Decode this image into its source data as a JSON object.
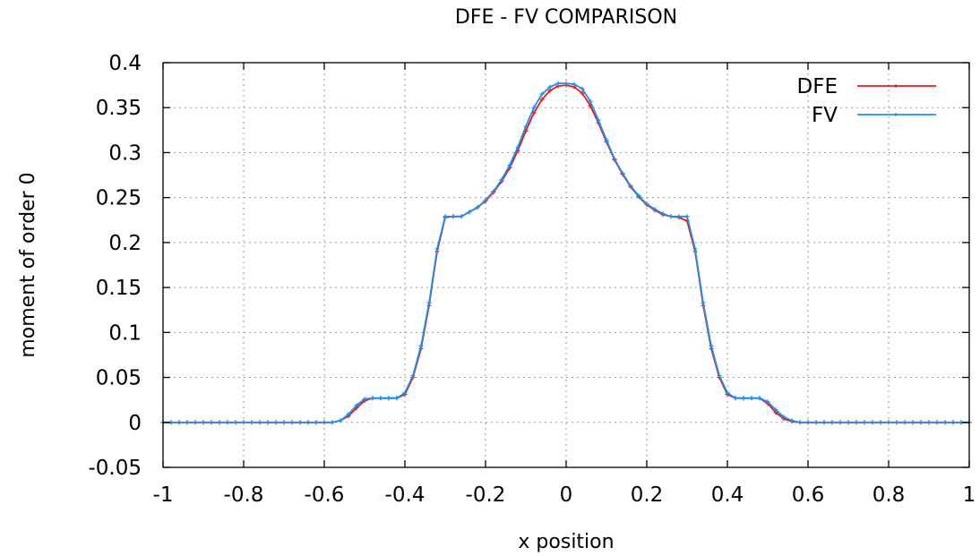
{
  "chart_data": {
    "type": "line",
    "title": "DFE - FV COMPARISON",
    "xlabel": "x position",
    "ylabel": "moment of order 0",
    "xlim": [
      -1,
      1
    ],
    "ylim": [
      -0.05,
      0.4
    ],
    "xticks": [
      -1,
      -0.8,
      -0.6,
      -0.4,
      -0.2,
      0,
      0.2,
      0.4,
      0.6,
      0.8,
      1
    ],
    "xtick_labels": [
      "-1",
      "-0.8",
      "-0.6",
      "-0.4",
      "-0.2",
      "0",
      "0.2",
      "0.4",
      "0.6",
      "0.8",
      "1"
    ],
    "yticks": [
      -0.05,
      0,
      0.05,
      0.1,
      0.15,
      0.2,
      0.25,
      0.3,
      0.35,
      0.4
    ],
    "ytick_labels": [
      "-0.05",
      "0",
      "0.05",
      "0.1",
      "0.15",
      "0.2",
      "0.25",
      "0.3",
      "0.35",
      "0.4"
    ],
    "grid": true,
    "legend_position": "top-right",
    "series": [
      {
        "name": "DFE",
        "color": "#e41a1c",
        "x": [
          -1,
          -0.58,
          -0.56,
          -0.54,
          -0.52,
          -0.5,
          -0.48,
          -0.46,
          -0.44,
          -0.42,
          -0.4,
          -0.38,
          -0.36,
          -0.34,
          -0.32,
          -0.3,
          -0.28,
          -0.26,
          -0.24,
          -0.22,
          -0.2,
          -0.18,
          -0.16,
          -0.14,
          -0.12,
          -0.1,
          -0.08,
          -0.06,
          -0.04,
          -0.02,
          0,
          0.02,
          0.04,
          0.06,
          0.08,
          0.1,
          0.12,
          0.14,
          0.16,
          0.18,
          0.2,
          0.22,
          0.24,
          0.26,
          0.28,
          0.3,
          0.32,
          0.34,
          0.36,
          0.38,
          0.4,
          0.42,
          0.44,
          0.46,
          0.48,
          0.5,
          0.52,
          0.54,
          0.56,
          0.58,
          1
        ],
        "y": [
          0,
          0,
          0.002,
          0.007,
          0.016,
          0.024,
          0.027,
          0.027,
          0.027,
          0.027,
          0.031,
          0.05,
          0.082,
          0.13,
          0.19,
          0.228,
          0.229,
          0.229,
          0.234,
          0.239,
          0.246,
          0.256,
          0.268,
          0.283,
          0.302,
          0.324,
          0.344,
          0.359,
          0.369,
          0.374,
          0.375,
          0.373,
          0.366,
          0.352,
          0.333,
          0.312,
          0.292,
          0.276,
          0.262,
          0.251,
          0.242,
          0.236,
          0.231,
          0.229,
          0.228,
          0.224,
          0.19,
          0.13,
          0.082,
          0.05,
          0.031,
          0.027,
          0.027,
          0.027,
          0.027,
          0.021,
          0.011,
          0.004,
          0.001,
          0,
          0
        ]
      },
      {
        "name": "FV",
        "color": "#1e90e6",
        "x": [
          -1,
          -0.58,
          -0.56,
          -0.54,
          -0.52,
          -0.5,
          -0.48,
          -0.46,
          -0.44,
          -0.42,
          -0.4,
          -0.38,
          -0.36,
          -0.34,
          -0.32,
          -0.3,
          -0.28,
          -0.26,
          -0.24,
          -0.22,
          -0.2,
          -0.18,
          -0.16,
          -0.14,
          -0.12,
          -0.1,
          -0.08,
          -0.06,
          -0.04,
          -0.02,
          0,
          0.02,
          0.04,
          0.06,
          0.08,
          0.1,
          0.12,
          0.14,
          0.16,
          0.18,
          0.2,
          0.22,
          0.24,
          0.26,
          0.28,
          0.3,
          0.32,
          0.34,
          0.36,
          0.38,
          0.4,
          0.42,
          0.44,
          0.46,
          0.48,
          0.5,
          0.52,
          0.54,
          0.56,
          0.58,
          1
        ],
        "y": [
          0,
          0,
          0.002,
          0.009,
          0.019,
          0.026,
          0.027,
          0.027,
          0.027,
          0.027,
          0.033,
          0.052,
          0.085,
          0.133,
          0.193,
          0.229,
          0.229,
          0.229,
          0.234,
          0.239,
          0.247,
          0.257,
          0.27,
          0.286,
          0.306,
          0.329,
          0.35,
          0.365,
          0.373,
          0.377,
          0.377,
          0.376,
          0.371,
          0.357,
          0.336,
          0.314,
          0.293,
          0.277,
          0.263,
          0.252,
          0.243,
          0.237,
          0.232,
          0.229,
          0.229,
          0.229,
          0.193,
          0.133,
          0.085,
          0.052,
          0.033,
          0.027,
          0.027,
          0.027,
          0.027,
          0.023,
          0.014,
          0.006,
          0.002,
          0,
          0
        ]
      }
    ]
  }
}
